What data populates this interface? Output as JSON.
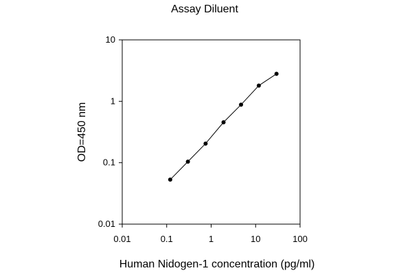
{
  "chart_data": {
    "type": "line",
    "title": "Assay Diluent",
    "xlabel": "Human Nidogen-1 concentration (pg/ml)",
    "ylabel": "OD=450 nm",
    "x_scale": "log",
    "y_scale": "log",
    "xlim": [
      0.01,
      100
    ],
    "ylim": [
      0.01,
      10
    ],
    "x_ticks": [
      0.01,
      0.1,
      1,
      10,
      100
    ],
    "x_tick_labels": [
      "0.01",
      "0.1",
      "1",
      "10",
      "100"
    ],
    "y_ticks": [
      0.01,
      0.1,
      1,
      10
    ],
    "y_tick_labels": [
      "0.01",
      "0.1",
      "1",
      "10"
    ],
    "grid": false,
    "legend": "none",
    "series": [
      {
        "x": [
          0.12,
          0.3,
          0.75,
          1.9,
          4.7,
          11.8,
          29.5
        ],
        "y": [
          0.053,
          0.104,
          0.205,
          0.455,
          0.88,
          1.8,
          2.8
        ],
        "color": "#000000"
      }
    ]
  }
}
